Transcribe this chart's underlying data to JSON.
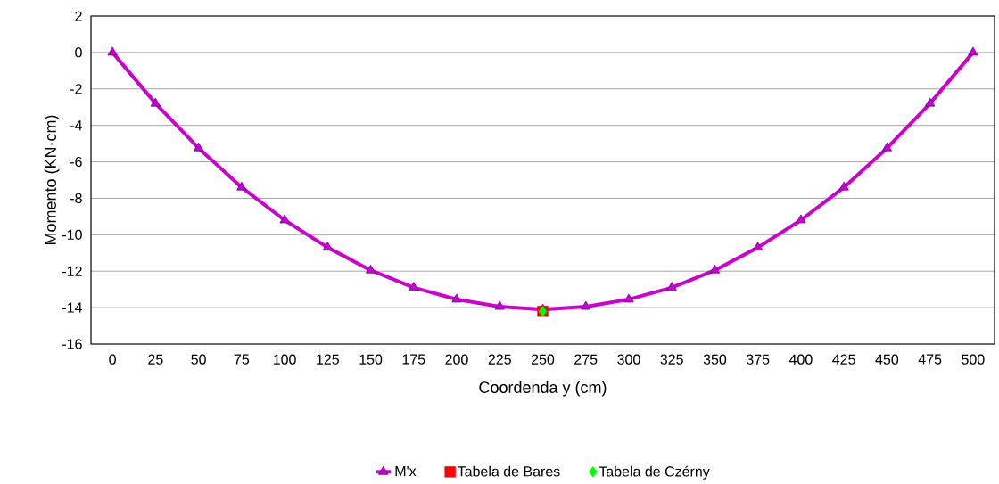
{
  "chart_data": {
    "type": "line",
    "xlabel": "Coordenda y (cm)",
    "ylabel": "Momento (KN·cm)",
    "categories": [
      "0",
      "25",
      "50",
      "75",
      "100",
      "125",
      "150",
      "175",
      "200",
      "225",
      "250",
      "275",
      "300",
      "325",
      "350",
      "375",
      "400",
      "425",
      "450",
      "475",
      "500"
    ],
    "series": [
      {
        "name": "M'x",
        "color": "#cc00cc",
        "marker": "triangle",
        "values": [
          0,
          -2.8,
          -5.25,
          -7.4,
          -9.2,
          -10.7,
          -11.95,
          -12.9,
          -13.55,
          -13.95,
          -14.1,
          -13.95,
          -13.55,
          -12.9,
          -11.95,
          -10.7,
          -9.2,
          -7.4,
          -5.25,
          -2.8,
          0
        ]
      },
      {
        "name": "Tabela de Bares",
        "type": "scatter",
        "color": "#ff0000",
        "marker": "square",
        "x": [
          "250"
        ],
        "values": [
          -14.2
        ]
      },
      {
        "name": "Tabela de Czérny",
        "type": "scatter",
        "color": "#00ff00",
        "marker": "diamond",
        "x": [
          "250"
        ],
        "values": [
          -14.2
        ]
      }
    ],
    "ylim": [
      -16,
      2
    ],
    "yticks": [
      -16,
      -14,
      -12,
      -10,
      -8,
      -6,
      -4,
      -2,
      0,
      2
    ],
    "grid": "y",
    "legend": "bottom"
  }
}
